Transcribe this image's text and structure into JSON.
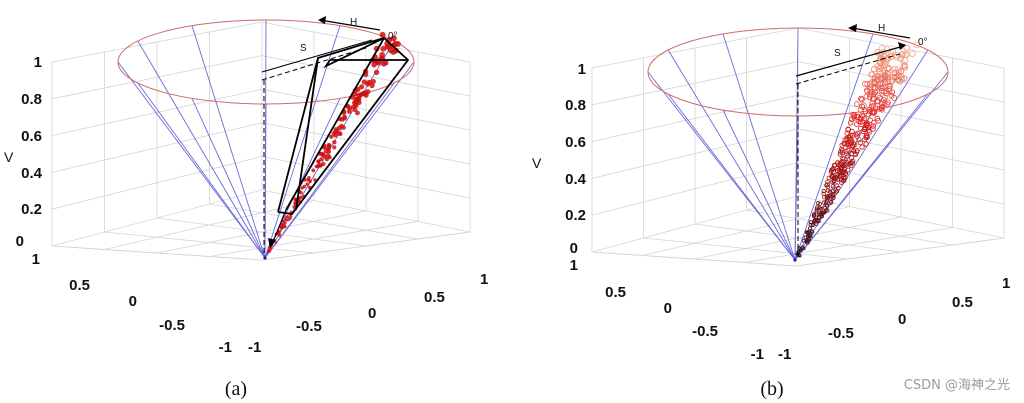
{
  "chart_data": [
    {
      "type": "scatter",
      "panel": "(a)",
      "zlabel": "V",
      "z_ticks": [
        "0",
        "0.2",
        "0.4",
        "0.6",
        "0.8",
        "1"
      ],
      "x_ticks": [
        "1",
        "0.5",
        "0",
        "-0.5",
        "-1"
      ],
      "y_ticks": [
        "-1",
        "-0.5",
        "0",
        "0.5",
        "1"
      ],
      "zlim": [
        0,
        1
      ],
      "annotations": [
        "H",
        "S",
        "0°"
      ],
      "points_color": "#d01010",
      "frame_color": "#000000",
      "cone_spoke_color": "#6a6ad8",
      "cone_rim_color": "#d26a6a"
    },
    {
      "type": "scatter",
      "panel": "(b)",
      "zlabel": "V",
      "z_ticks": [
        "0",
        "0.2",
        "0.4",
        "0.6",
        "0.8",
        "1"
      ],
      "x_ticks": [
        "1",
        "0.5",
        "0",
        "-0.5",
        "-1"
      ],
      "y_ticks": [
        "-1",
        "-0.5",
        "0",
        "0.5",
        "1"
      ],
      "zlim": [
        0,
        1
      ],
      "annotations": [
        "H",
        "S",
        "0°"
      ],
      "points_color_gradient": [
        "#1a1a2a",
        "#8a1010",
        "#e02020",
        "#f0b090"
      ],
      "cone_spoke_color": "#6a6ad8",
      "cone_rim_color": "#d26a6a"
    }
  ],
  "watermark": "CSDN @海神之光"
}
